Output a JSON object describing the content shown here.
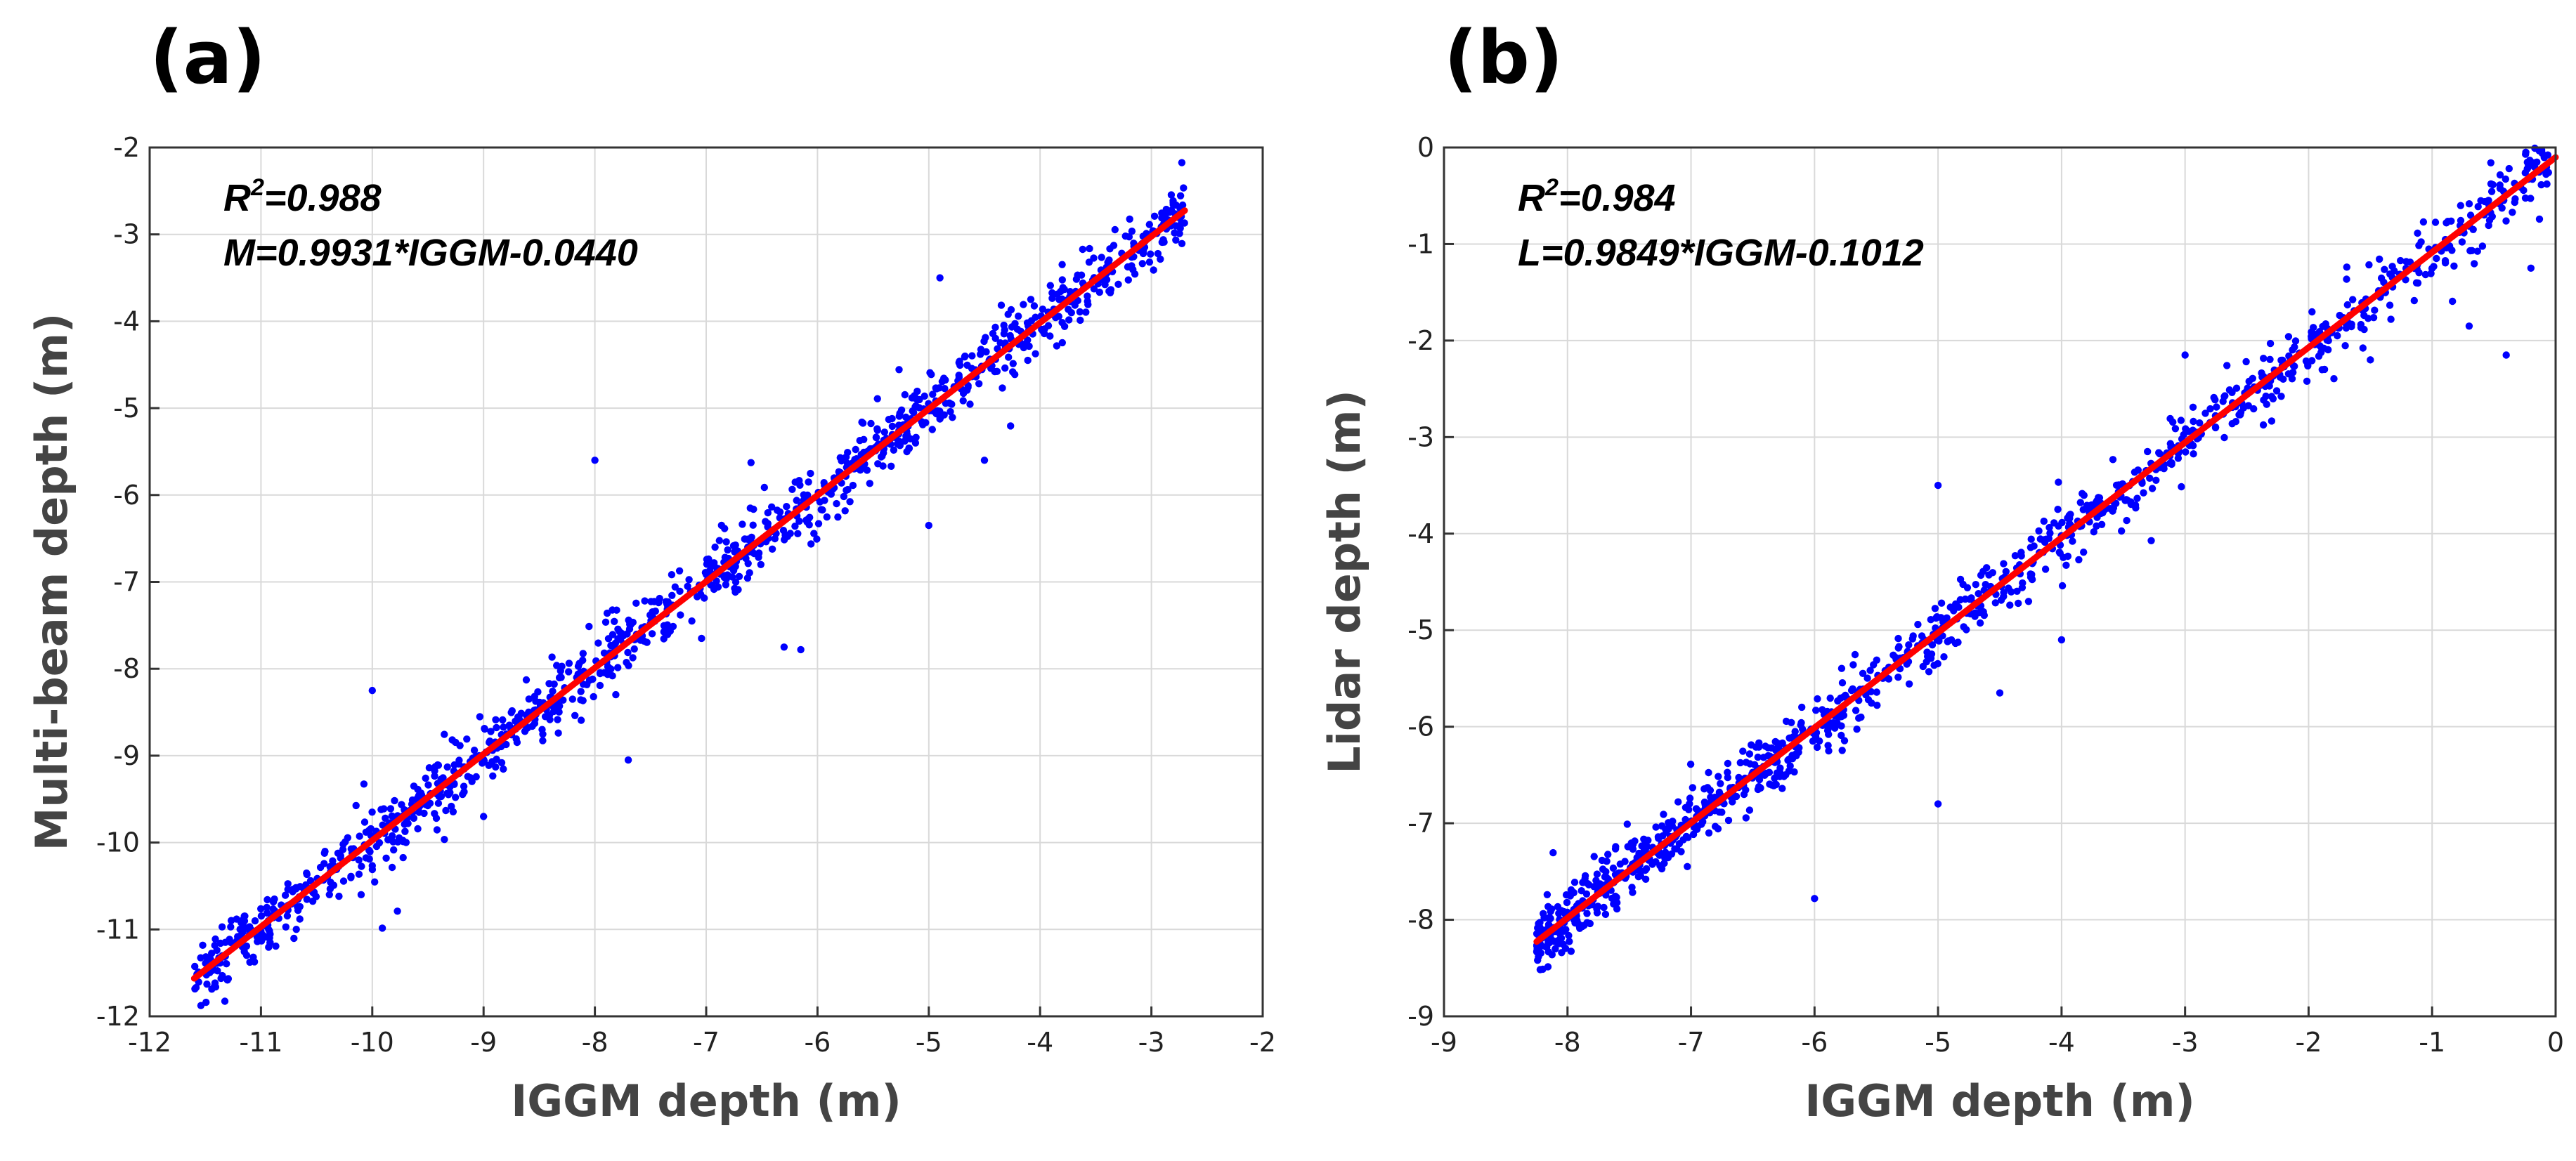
{
  "chart_data": [
    {
      "type": "scatter",
      "panel_label": "(a)",
      "xlabel": "IGGM depth (m)",
      "ylabel": "Multi-beam depth (m)",
      "xlim": [
        -12,
        -2
      ],
      "ylim": [
        -12,
        -2
      ],
      "xticks": [
        -12,
        -11,
        -10,
        -9,
        -8,
        -7,
        -6,
        -5,
        -4,
        -3,
        -2
      ],
      "yticks": [
        -12,
        -11,
        -10,
        -9,
        -8,
        -7,
        -6,
        -5,
        -4,
        -3,
        -2
      ],
      "grid": true,
      "r2_prefix": "R",
      "r2_sup": "2",
      "r2_value": "=0.988",
      "equation": "M=0.9931*IGGM-0.0440",
      "fit": {
        "slope": 0.9931,
        "intercept": -0.044,
        "x_range": [
          -11.6,
          -2.7
        ]
      },
      "scatter": {
        "color": "#0000ff",
        "x_range": [
          -11.6,
          -2.7
        ],
        "n_points": 1100,
        "noise_sd": 0.18
      },
      "outliers": [
        [
          -8.0,
          -5.6
        ],
        [
          -5.0,
          -6.35
        ],
        [
          -6.3,
          -7.75
        ],
        [
          -7.7,
          -9.05
        ],
        [
          -10.0,
          -8.25
        ],
        [
          -4.9,
          -3.5
        ],
        [
          -9.0,
          -9.7
        ],
        [
          -6.15,
          -7.78
        ],
        [
          -10.1,
          -10.6
        ],
        [
          -4.5,
          -5.6
        ]
      ]
    },
    {
      "type": "scatter",
      "panel_label": "(b)",
      "xlabel": "IGGM depth (m)",
      "ylabel": "Lidar depth (m)",
      "xlim": [
        -9,
        0
      ],
      "ylim": [
        -9,
        0
      ],
      "xticks": [
        -9,
        -8,
        -7,
        -6,
        -5,
        -4,
        -3,
        -2,
        -1,
        0
      ],
      "yticks": [
        -9,
        -8,
        -7,
        -6,
        -5,
        -4,
        -3,
        -2,
        -1,
        0
      ],
      "grid": true,
      "r2_prefix": "R",
      "r2_sup": "2",
      "r2_value": "=0.984",
      "equation": "L=0.9849*IGGM-0.1012",
      "fit": {
        "slope": 0.9849,
        "intercept": -0.1012,
        "x_range": [
          -8.25,
          0
        ]
      },
      "scatter": {
        "color": "#0000ff",
        "x_range": [
          -8.25,
          -0.05
        ],
        "n_points": 1100,
        "noise_sd": 0.16
      },
      "outliers": [
        [
          -6.0,
          -7.78
        ],
        [
          -5.0,
          -6.8
        ],
        [
          -5.0,
          -3.5
        ],
        [
          -3.0,
          -2.15
        ],
        [
          -0.4,
          -2.15
        ],
        [
          -0.2,
          -1.25
        ],
        [
          -0.7,
          -1.85
        ],
        [
          -1.5,
          -2.2
        ],
        [
          -4.5,
          -5.65
        ],
        [
          -4.0,
          -5.1
        ]
      ]
    }
  ]
}
